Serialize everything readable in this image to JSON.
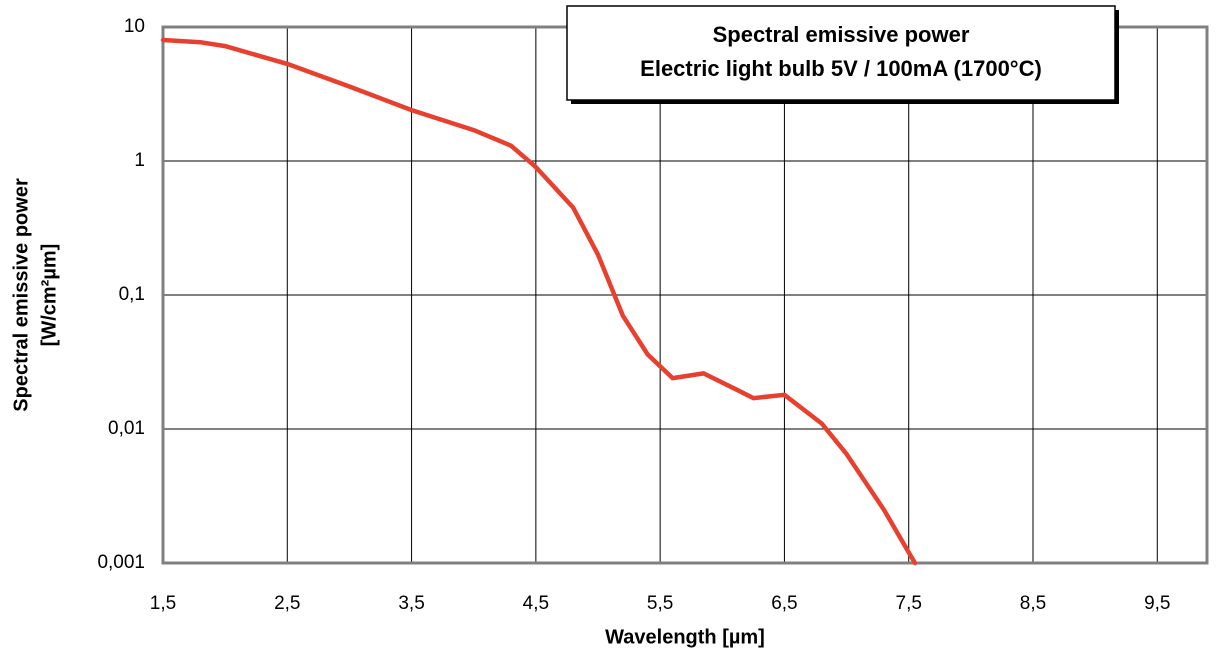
{
  "chart_data": {
    "type": "line",
    "title": "Spectral emissive power",
    "subtitle": "Electric light bulb 5V / 100mA (1700°C)",
    "xlabel": "Wavelength [µm]",
    "ylabel": [
      "Spectral emissive power",
      "[W/cm²µm]"
    ],
    "x": [
      1.5,
      1.8,
      2.0,
      2.5,
      3.0,
      3.5,
      4.0,
      4.3,
      4.5,
      4.8,
      5.0,
      5.2,
      5.4,
      5.6,
      5.85,
      6.1,
      6.25,
      6.5,
      6.8,
      7.0,
      7.3,
      7.55
    ],
    "series": [
      {
        "color": "#e8402e",
        "values": [
          8,
          7.7,
          7.2,
          5.3,
          3.6,
          2.4,
          1.7,
          1.3,
          0.9,
          0.45,
          0.2,
          0.07,
          0.036,
          0.024,
          0.026,
          0.02,
          0.017,
          0.018,
          0.011,
          0.0065,
          0.0025,
          0.001
        ]
      }
    ],
    "xlim": [
      1.5,
      9.9
    ],
    "xticks": [
      {
        "value": 1.5,
        "label": "1,5"
      },
      {
        "value": 2.5,
        "label": "2,5"
      },
      {
        "value": 3.5,
        "label": "3,5"
      },
      {
        "value": 4.5,
        "label": "4,5"
      },
      {
        "value": 5.5,
        "label": "5,5"
      },
      {
        "value": 6.5,
        "label": "6,5"
      },
      {
        "value": 7.5,
        "label": "7,5"
      },
      {
        "value": 8.5,
        "label": "8,5"
      },
      {
        "value": 9.5,
        "label": "9,5"
      }
    ],
    "ylim": [
      0.001,
      10
    ],
    "yticks": [
      {
        "value": 0.001,
        "label": "0,001"
      },
      {
        "value": 0.01,
        "label": "0,01"
      },
      {
        "value": 0.1,
        "label": "0,1"
      },
      1,
      10
    ],
    "yscale": "log",
    "grid": true
  }
}
